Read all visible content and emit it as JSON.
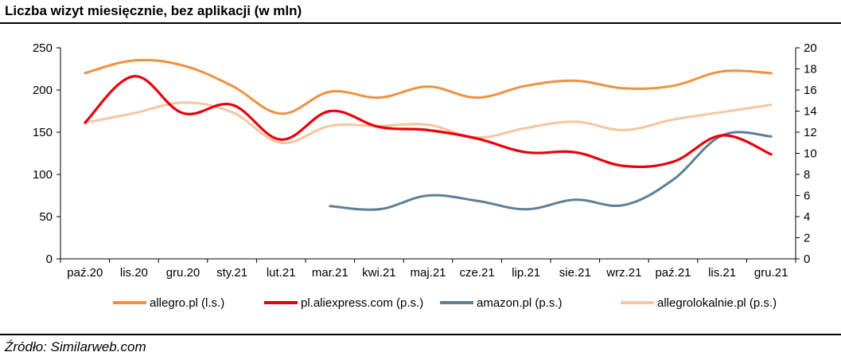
{
  "title": "Liczba wizyt miesięcznie, bez aplikacji (w mln)",
  "source": "Źródło: Similarweb.com",
  "chart_data": {
    "type": "line",
    "title": "Liczba wizyt miesięcznie, bez aplikacji (w mln)",
    "categories": [
      "paź.20",
      "lis.20",
      "gru.20",
      "sty.21",
      "lut.21",
      "mar.21",
      "kwi.21",
      "maj.21",
      "cze.21",
      "lip.21",
      "sie.21",
      "wrz.21",
      "paź.21",
      "lis.21",
      "gru.21"
    ],
    "y_left": {
      "ylim": [
        0,
        250
      ],
      "ticks": [
        0,
        50,
        100,
        150,
        200,
        250
      ]
    },
    "y_right": {
      "ylim": [
        0,
        20
      ],
      "ticks": [
        0,
        2,
        4,
        6,
        8,
        10,
        12,
        14,
        16,
        18,
        20
      ]
    },
    "grid": false,
    "legend_position": "bottom",
    "series": [
      {
        "name": "allegro.pl (l.s.)",
        "axis": "left",
        "color": "#f0913f",
        "values": [
          220,
          235,
          229,
          205,
          172,
          198,
          191,
          204,
          191,
          205,
          211,
          202,
          205,
          222,
          220
        ]
      },
      {
        "name": "pl.aliexpress.com (p.s.)",
        "axis": "right",
        "color": "#e8000b",
        "values": [
          12.9,
          17.3,
          13.8,
          14.6,
          11.3,
          14.0,
          12.5,
          12.2,
          11.4,
          10.1,
          10.1,
          8.8,
          9.2,
          11.7,
          9.9
        ]
      },
      {
        "name": "amazon.pl (p.s.)",
        "axis": "right",
        "color": "#5e7f97",
        "values": [
          null,
          null,
          null,
          null,
          null,
          5.0,
          4.7,
          6.0,
          5.5,
          4.7,
          5.6,
          5.1,
          7.5,
          11.7,
          11.6
        ]
      },
      {
        "name": "allegrolokalnie.pl (p.s.)",
        "axis": "right",
        "color": "#f7c59f",
        "values": [
          12.9,
          13.8,
          14.8,
          13.9,
          11.0,
          12.6,
          12.6,
          12.7,
          11.5,
          12.4,
          13.0,
          12.2,
          13.2,
          13.9,
          14.6
        ]
      }
    ]
  }
}
